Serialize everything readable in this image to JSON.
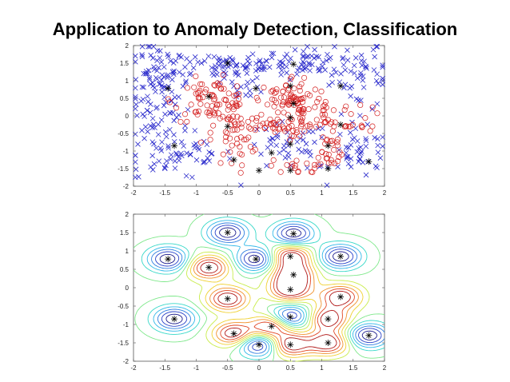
{
  "slide": {
    "title": "Application to Anomaly Detection, Classification"
  },
  "chart_data": [
    {
      "type": "scatter",
      "xlim": [
        -2,
        2
      ],
      "ylim": [
        -2,
        2
      ],
      "xticks": [
        "-2",
        "-1.5",
        "-1",
        "-0.5",
        "0",
        "0.5",
        "1",
        "1.5",
        "2"
      ],
      "yticks": [
        "2",
        "1.5",
        "1",
        "0.5",
        "0",
        "-0.5",
        "-1",
        "-1.5",
        "-2"
      ],
      "grid": false,
      "series": [
        {
          "marker": "x",
          "color": "#2b2bcc",
          "clusters": [
            {
              "x": -1.6,
              "y": 0.6,
              "sx": 0.22,
              "sy": 0.75,
              "n": 110
            },
            {
              "x": -0.6,
              "y": 1.45,
              "sx": 0.55,
              "sy": 0.22,
              "n": 80
            },
            {
              "x": 0.8,
              "y": 1.5,
              "sx": 0.5,
              "sy": 0.22,
              "n": 70
            },
            {
              "x": 1.6,
              "y": 1.0,
              "sx": 0.3,
              "sy": 0.45,
              "n": 45
            },
            {
              "x": -1.3,
              "y": -1.1,
              "sx": 0.45,
              "sy": 0.35,
              "n": 65
            },
            {
              "x": 0.45,
              "y": -0.9,
              "sx": 0.35,
              "sy": 0.35,
              "n": 45
            },
            {
              "x": 1.65,
              "y": -1.1,
              "sx": 0.25,
              "sy": 0.35,
              "n": 45
            },
            {
              "x": -0.2,
              "y": 0.8,
              "sx": 0.15,
              "sy": 0.15,
              "n": 15
            }
          ]
        },
        {
          "marker": "o",
          "color": "#d42020",
          "clusters": [
            {
              "x": -0.75,
              "y": 0.45,
              "sx": 0.3,
              "sy": 0.3,
              "n": 75
            },
            {
              "x": -0.4,
              "y": -0.5,
              "sx": 0.18,
              "sy": 0.5,
              "n": 55
            },
            {
              "x": 0.55,
              "y": 0.4,
              "sx": 0.3,
              "sy": 0.38,
              "n": 85
            },
            {
              "x": 1.05,
              "y": 0.05,
              "sx": 0.35,
              "sy": 0.25,
              "n": 40
            },
            {
              "x": 1.1,
              "y": -1.0,
              "sx": 0.15,
              "sy": 0.3,
              "n": 25
            },
            {
              "x": 0.2,
              "y": -0.35,
              "sx": 0.3,
              "sy": 0.12,
              "n": 30
            },
            {
              "x": 0.65,
              "y": -1.45,
              "sx": 0.25,
              "sy": 0.1,
              "n": 20
            },
            {
              "x": 1.6,
              "y": -0.3,
              "sx": 0.12,
              "sy": 0.1,
              "n": 8
            }
          ]
        },
        {
          "marker": "*",
          "color": "#000000",
          "points": [
            [
              -1.45,
              0.78
            ],
            [
              -0.5,
              1.5
            ],
            [
              0.55,
              1.47
            ],
            [
              -0.8,
              0.55
            ],
            [
              -0.05,
              0.78
            ],
            [
              0.5,
              0.85
            ],
            [
              1.3,
              0.85
            ],
            [
              0.55,
              0.35
            ],
            [
              -0.5,
              -0.3
            ],
            [
              0.5,
              -0.05
            ],
            [
              1.3,
              -0.25
            ],
            [
              -1.35,
              -0.85
            ],
            [
              -0.4,
              -1.25
            ],
            [
              0.2,
              -1.05
            ],
            [
              0.5,
              -0.8
            ],
            [
              1.1,
              -0.85
            ],
            [
              1.75,
              -1.3
            ],
            [
              0.0,
              -1.55
            ],
            [
              0.5,
              -1.55
            ],
            [
              1.1,
              -1.5
            ]
          ]
        }
      ]
    },
    {
      "type": "contour",
      "xlim": [
        -2,
        2
      ],
      "ylim": [
        -2,
        2
      ],
      "xticks": [
        "-2",
        "-1.5",
        "-1",
        "-0.5",
        "0",
        "0.5",
        "1",
        "1.5",
        "2"
      ],
      "yticks": [
        "2",
        "1.5",
        "1",
        "0.5",
        "0",
        "-0.5",
        "-1",
        "-1.5",
        "-2"
      ],
      "grid": false,
      "centers": [
        {
          "x": -1.45,
          "y": 0.78,
          "w": 1
        },
        {
          "x": -0.5,
          "y": 1.5,
          "w": 1
        },
        {
          "x": 0.55,
          "y": 1.47,
          "w": 1
        },
        {
          "x": -0.8,
          "y": 0.55,
          "w": -1
        },
        {
          "x": -0.05,
          "y": 0.78,
          "w": 1
        },
        {
          "x": 0.5,
          "y": 0.85,
          "w": -1
        },
        {
          "x": 1.3,
          "y": 0.85,
          "w": 1
        },
        {
          "x": 0.55,
          "y": 0.35,
          "w": -1
        },
        {
          "x": -0.5,
          "y": -0.3,
          "w": -1
        },
        {
          "x": 0.5,
          "y": -0.05,
          "w": -1
        },
        {
          "x": 1.3,
          "y": -0.25,
          "w": -1
        },
        {
          "x": -1.35,
          "y": -0.85,
          "w": 1
        },
        {
          "x": -0.4,
          "y": -1.25,
          "w": -1
        },
        {
          "x": 0.2,
          "y": -1.05,
          "w": -1
        },
        {
          "x": 0.5,
          "y": -0.8,
          "w": 1
        },
        {
          "x": 1.1,
          "y": -0.85,
          "w": -1
        },
        {
          "x": 1.75,
          "y": -1.3,
          "w": 1
        },
        {
          "x": 0.0,
          "y": -1.55,
          "w": 1
        },
        {
          "x": 0.5,
          "y": -1.55,
          "w": -1
        },
        {
          "x": 1.1,
          "y": -1.5,
          "w": -1
        }
      ],
      "colormap": [
        "#1a1a8c",
        "#2840c8",
        "#2f7ee0",
        "#30b8e8",
        "#36d8c8",
        "#7ee88a",
        "#c8ec4a",
        "#f0d030",
        "#f0902a",
        "#e04422",
        "#b01818"
      ]
    }
  ]
}
